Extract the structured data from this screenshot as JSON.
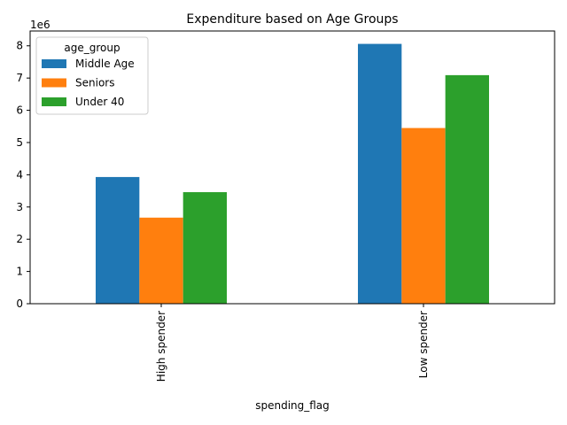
{
  "chart_data": {
    "type": "bar",
    "title": "Expenditure based on Age Groups",
    "xlabel": "spending_flag",
    "ylabel": "",
    "y_offset_text": "1e6",
    "categories": [
      "High spender",
      "Low spender"
    ],
    "series": [
      {
        "name": "Middle Age",
        "color": "#1f77b4",
        "values": [
          3930000,
          8060000
        ]
      },
      {
        "name": "Seniors",
        "color": "#ff7f0e",
        "values": [
          2670000,
          5450000
        ]
      },
      {
        "name": "Under 40",
        "color": "#2ca02c",
        "values": [
          3460000,
          7090000
        ]
      }
    ],
    "ylim": [
      0,
      8460000
    ],
    "yticks": [
      0,
      1,
      2,
      3,
      4,
      5,
      6,
      7,
      8
    ],
    "ytick_scale": 1000000,
    "legend": {
      "title": "age_group",
      "placement": "top-left"
    },
    "grid": false
  }
}
